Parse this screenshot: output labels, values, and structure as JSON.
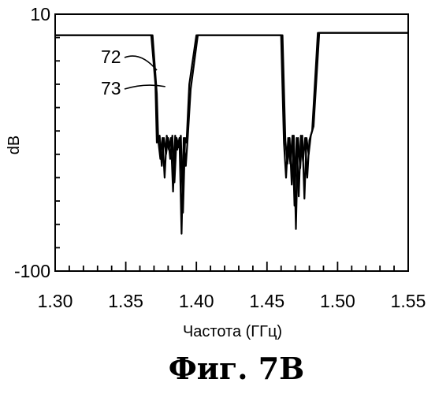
{
  "chart_data": {
    "type": "line",
    "title": "",
    "xlabel": "Частота (ГГц)",
    "ylabel": "dB",
    "xlim": [
      1.3,
      1.55
    ],
    "ylim": [
      -100,
      10
    ],
    "xticks": [
      "1.30",
      "1.35",
      "1.40",
      "1.45",
      "1.50",
      "1.55"
    ],
    "yticks": [
      "10",
      "-100"
    ],
    "caption": "Фиг. 7B",
    "annotations": [
      {
        "text": "72",
        "points_to": "curve 72",
        "at": [
          1.372,
          -14
        ]
      },
      {
        "text": "73",
        "points_to": "curve 73",
        "at": [
          1.378,
          -21
        ]
      }
    ],
    "series": [
      {
        "name": "72",
        "x": [
          1.3,
          1.362,
          1.368,
          1.371,
          1.372,
          1.374,
          1.3755,
          1.377,
          1.3785,
          1.38,
          1.3815,
          1.383,
          1.3845,
          1.386,
          1.3875,
          1.389,
          1.3905,
          1.392,
          1.393,
          1.395,
          1.4,
          1.455,
          1.46,
          1.462,
          1.4635,
          1.465,
          1.4665,
          1.468,
          1.4695,
          1.471,
          1.4725,
          1.474,
          1.4755,
          1.477,
          1.4785,
          1.48,
          1.482,
          1.486,
          1.55
        ],
        "y": [
          1,
          1,
          1,
          -20,
          -45,
          -42,
          -55,
          -43,
          -50,
          -43,
          -52,
          -42,
          -62,
          -43,
          -47,
          -42,
          -75,
          -43,
          -45,
          -20,
          1,
          1,
          1,
          -45,
          -60,
          -43,
          -54,
          -42,
          -72,
          -43,
          -68,
          -42,
          -53,
          -43,
          -60,
          -44,
          -40,
          2,
          2
        ]
      },
      {
        "name": "73",
        "x": [
          1.3,
          1.362,
          1.369,
          1.372,
          1.373,
          1.3745,
          1.376,
          1.3775,
          1.379,
          1.3805,
          1.382,
          1.3835,
          1.385,
          1.3865,
          1.388,
          1.3895,
          1.391,
          1.3925,
          1.394,
          1.396,
          1.401,
          1.456,
          1.461,
          1.463,
          1.4645,
          1.466,
          1.4675,
          1.469,
          1.4705,
          1.472,
          1.4735,
          1.475,
          1.4765,
          1.478,
          1.4795,
          1.481,
          1.483,
          1.487,
          1.55
        ],
        "y": [
          1,
          1,
          1,
          -24,
          -44,
          -52,
          -43,
          -60,
          -42,
          -48,
          -43,
          -66,
          -42,
          -48,
          -43,
          -84,
          -43,
          -55,
          -42,
          -22,
          1,
          1,
          1,
          -44,
          -54,
          -43,
          -63,
          -42,
          -82,
          -43,
          -56,
          -42,
          -69,
          -43,
          -50,
          -42,
          -38,
          2,
          2
        ]
      }
    ]
  }
}
